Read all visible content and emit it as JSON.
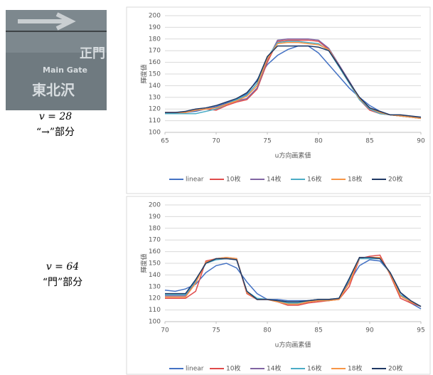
{
  "photo": {
    "texts": [
      "正門",
      "Main Gate",
      "東北沢"
    ]
  },
  "captions": [
    {
      "v": "v = 28",
      "part": "“→”部分"
    },
    {
      "v": "v = 64",
      "part": "“門”部分"
    }
  ],
  "chart_data": [
    {
      "type": "line",
      "x_label": "u方向画素値",
      "y_label": "輝度値",
      "x": [
        65,
        66,
        67,
        68,
        69,
        70,
        71,
        72,
        73,
        74,
        75,
        76,
        77,
        78,
        79,
        80,
        81,
        82,
        83,
        84,
        85,
        86,
        87,
        88,
        89,
        90
      ],
      "xlim": [
        65,
        90
      ],
      "xticks": [
        65,
        70,
        75,
        80,
        85,
        90
      ],
      "ylim": [
        100,
        200
      ],
      "yticks": [
        100,
        110,
        120,
        130,
        140,
        150,
        160,
        170,
        180,
        190,
        200
      ],
      "grid": true,
      "series": [
        {
          "name": "linear",
          "color": "#4472c4",
          "values": [
            117,
            117,
            117,
            118,
            120,
            122,
            125,
            128,
            133,
            145,
            158,
            166,
            171,
            174,
            174,
            168,
            158,
            148,
            138,
            130,
            123,
            118,
            115,
            114,
            113,
            113
          ]
        },
        {
          "name": "10枚",
          "color": "#e04b4b",
          "values": [
            117,
            117,
            117,
            119,
            120,
            119,
            123,
            126,
            128,
            137,
            160,
            178,
            179,
            179,
            179,
            178,
            171,
            157,
            143,
            128,
            119,
            116,
            115,
            114,
            113,
            112
          ]
        },
        {
          "name": "14枚",
          "color": "#8064a2",
          "values": [
            117,
            117,
            117,
            119,
            120,
            121,
            124,
            127,
            129,
            138,
            162,
            179,
            180,
            180,
            180,
            179,
            172,
            158,
            144,
            129,
            120,
            117,
            115,
            114,
            113,
            112
          ]
        },
        {
          "name": "16枚",
          "color": "#4bacc6",
          "values": [
            116,
            116,
            116,
            116,
            118,
            120,
            124,
            128,
            132,
            142,
            164,
            177,
            178,
            178,
            177,
            176,
            170,
            156,
            142,
            128,
            120,
            116,
            115,
            114,
            113,
            112
          ]
        },
        {
          "name": "18枚",
          "color": "#f79646",
          "values": [
            117,
            117,
            117,
            119,
            120,
            121,
            124,
            127,
            131,
            140,
            163,
            176,
            177,
            177,
            176,
            175,
            171,
            157,
            143,
            129,
            121,
            117,
            115,
            114,
            113,
            112
          ]
        },
        {
          "name": "20枚",
          "color": "#1f3864",
          "values": [
            117,
            117,
            118,
            120,
            121,
            123,
            126,
            129,
            134,
            144,
            165,
            174,
            174,
            174,
            174,
            173,
            170,
            157,
            143,
            130,
            121,
            118,
            115,
            115,
            114,
            113
          ]
        }
      ]
    },
    {
      "type": "line",
      "x_label": "u方向画素値",
      "y_label": "輝度値",
      "x": [
        70,
        71,
        72,
        73,
        74,
        75,
        76,
        77,
        78,
        79,
        80,
        81,
        82,
        83,
        84,
        85,
        86,
        87,
        88,
        89,
        90,
        91,
        92,
        93,
        94,
        95
      ],
      "xlim": [
        70,
        95
      ],
      "xticks": [
        70,
        75,
        80,
        85,
        90,
        95
      ],
      "ylim": [
        100,
        200
      ],
      "yticks": [
        100,
        110,
        120,
        130,
        140,
        150,
        160,
        170,
        180,
        190,
        200
      ],
      "grid": true,
      "series": [
        {
          "name": "linear",
          "color": "#4472c4",
          "values": [
            127,
            126,
            128,
            132,
            142,
            148,
            150,
            146,
            134,
            124,
            119,
            119,
            118,
            118,
            118,
            119,
            119,
            120,
            134,
            148,
            153,
            152,
            142,
            125,
            116,
            111
          ]
        },
        {
          "name": "10枚",
          "color": "#e04b4b",
          "values": [
            120,
            120,
            120,
            126,
            152,
            154,
            154,
            154,
            124,
            119,
            119,
            117,
            114,
            114,
            116,
            117,
            118,
            119,
            130,
            154,
            156,
            157,
            140,
            120,
            116,
            113
          ]
        },
        {
          "name": "14枚",
          "color": "#8064a2",
          "values": [
            122,
            122,
            122,
            134,
            151,
            154,
            155,
            154,
            125,
            119,
            119,
            117,
            115,
            115,
            117,
            118,
            118,
            119,
            134,
            155,
            155,
            155,
            141,
            122,
            117,
            113
          ]
        },
        {
          "name": "16枚",
          "color": "#4bacc6",
          "values": [
            123,
            123,
            123,
            135,
            150,
            153,
            154,
            153,
            126,
            120,
            119,
            118,
            116,
            116,
            118,
            119,
            119,
            120,
            136,
            154,
            154,
            154,
            141,
            123,
            117,
            113
          ]
        },
        {
          "name": "18枚",
          "color": "#f79646",
          "values": [
            121,
            121,
            121,
            133,
            151,
            154,
            155,
            154,
            125,
            119,
            119,
            117,
            115,
            115,
            117,
            118,
            118,
            119,
            133,
            155,
            155,
            155,
            141,
            122,
            117,
            113
          ]
        },
        {
          "name": "20枚",
          "color": "#1f3864",
          "values": [
            124,
            124,
            124,
            136,
            150,
            154,
            154,
            153,
            126,
            119,
            119,
            118,
            117,
            117,
            118,
            119,
            119,
            120,
            137,
            155,
            155,
            154,
            142,
            125,
            118,
            113
          ]
        }
      ]
    }
  ]
}
